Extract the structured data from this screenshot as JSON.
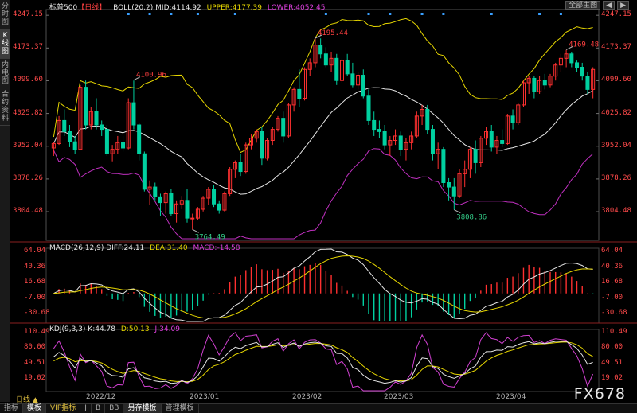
{
  "left_tabs": [
    "分时图",
    "K线图",
    "内电图",
    "合约资料"
  ],
  "main_header": {
    "symbol": "标普500",
    "period": "【日线】",
    "indicator": "BOLL(20,2)",
    "mid": "MID:4114.92",
    "upper": "UPPER:4177.39",
    "lower": "LOWER:4052.45"
  },
  "toolbar_right": {
    "btn1": "全部主图",
    "btn2": "◀",
    "btn3": "▶"
  },
  "price_axis": [
    "4247.15",
    "4173.37",
    "4099.60",
    "4025.82",
    "3952.04",
    "3878.26",
    "3804.48"
  ],
  "price_annotations": [
    {
      "text": "4100.96",
      "color": "#ff4040"
    },
    {
      "text": "4195.44",
      "color": "#ff4040"
    },
    {
      "text": "4169.48",
      "color": "#ff4040"
    },
    {
      "text": "3764.49",
      "color": "#33cc88"
    },
    {
      "text": "3808.86",
      "color": "#33cc88"
    }
  ],
  "macd_header": {
    "name": "MACD(26,12,9)",
    "diff": "DIFF:24.11",
    "dea": "DEA:31.40",
    "macd": "MACD:-14.58"
  },
  "macd_axis": [
    "64.04",
    "40.36",
    "16.68",
    "-7.00",
    "-30.68"
  ],
  "kdj_header": {
    "name": "KDJ(9,3,3)",
    "k": "K:44.78",
    "d": "D:50.13",
    "j": "J:34.09"
  },
  "kdj_axis": [
    "110.49",
    "80.00",
    "49.51",
    "19.02"
  ],
  "dates": [
    "2022/12",
    "2023/01",
    "2023/02",
    "2023/03",
    "2023/04"
  ],
  "period_bottom": "日线 ▲",
  "bottom_tabs": [
    "指标",
    "模板",
    "VIP指标",
    "J",
    "B",
    "BB",
    "另存模板",
    "管理模板"
  ],
  "watermark": "FX678",
  "colors": {
    "up": "#ff3030",
    "down": "#00d0a0",
    "upper_band": "#e6d600",
    "mid_band": "#e6e6e6",
    "lower_band": "#c030c0"
  },
  "chart_data": {
    "type": "candlestick",
    "title": "标普500 日线",
    "ylim": [
      3740,
      4260
    ],
    "candles": [
      [
        3948,
        3962,
        3930,
        3958
      ],
      [
        3958,
        4020,
        3955,
        4010
      ],
      [
        4010,
        4035,
        3975,
        3985
      ],
      [
        3985,
        4000,
        3950,
        3962
      ],
      [
        3962,
        3975,
        3935,
        3945
      ],
      [
        3945,
        4090,
        3945,
        4085
      ],
      [
        4085,
        4100,
        3990,
        4000
      ],
      [
        4000,
        4040,
        3990,
        4030
      ],
      [
        4030,
        4060,
        3990,
        4000
      ],
      [
        4000,
        4010,
        3975,
        3990
      ],
      [
        3990,
        4000,
        3930,
        3935
      ],
      [
        3935,
        3955,
        3918,
        3945
      ],
      [
        3945,
        3975,
        3935,
        3960
      ],
      [
        3960,
        3975,
        3940,
        3948
      ],
      [
        3948,
        4060,
        3945,
        4050
      ],
      [
        4050,
        4100,
        3990,
        4000
      ],
      [
        4000,
        4005,
        3920,
        3935
      ],
      [
        3935,
        3940,
        3850,
        3855
      ],
      [
        3855,
        3875,
        3820,
        3860
      ],
      [
        3860,
        3870,
        3830,
        3838
      ],
      [
        3838,
        3845,
        3795,
        3825
      ],
      [
        3825,
        3850,
        3800,
        3845
      ],
      [
        3845,
        3855,
        3795,
        3800
      ],
      [
        3800,
        3830,
        3780,
        3822
      ],
      [
        3822,
        3840,
        3810,
        3830
      ],
      [
        3830,
        3855,
        3780,
        3790
      ],
      [
        3790,
        3800,
        3764,
        3790
      ],
      [
        3790,
        3815,
        3785,
        3810
      ],
      [
        3810,
        3840,
        3805,
        3835
      ],
      [
        3835,
        3860,
        3820,
        3855
      ],
      [
        3855,
        3865,
        3815,
        3822
      ],
      [
        3822,
        3830,
        3800,
        3808
      ],
      [
        3808,
        3850,
        3805,
        3845
      ],
      [
        3845,
        3905,
        3840,
        3900
      ],
      [
        3900,
        3920,
        3880,
        3915
      ],
      [
        3915,
        3935,
        3885,
        3895
      ],
      [
        3895,
        3960,
        3890,
        3955
      ],
      [
        3955,
        3980,
        3945,
        3970
      ],
      [
        3970,
        3990,
        3960,
        3985
      ],
      [
        3985,
        3995,
        3910,
        3925
      ],
      [
        3925,
        3970,
        3920,
        3965
      ],
      [
        3965,
        3995,
        3955,
        3990
      ],
      [
        3990,
        4020,
        3985,
        4015
      ],
      [
        4015,
        4030,
        3960,
        3975
      ],
      [
        3975,
        4050,
        3970,
        4045
      ],
      [
        4045,
        4085,
        4030,
        4080
      ],
      [
        4080,
        4125,
        4040,
        4060
      ],
      [
        4060,
        4130,
        4055,
        4125
      ],
      [
        4125,
        4150,
        4110,
        4140
      ],
      [
        4140,
        4195,
        4130,
        4180
      ],
      [
        4180,
        4195,
        4150,
        4160
      ],
      [
        4160,
        4175,
        4130,
        4135
      ],
      [
        4135,
        4165,
        4120,
        4150
      ],
      [
        4150,
        4160,
        4090,
        4100
      ],
      [
        4100,
        4150,
        4095,
        4145
      ],
      [
        4145,
        4160,
        4110,
        4115
      ],
      [
        4115,
        4140,
        4085,
        4090
      ],
      [
        4090,
        4120,
        4080,
        4112
      ],
      [
        4112,
        4125,
        4060,
        4065
      ],
      [
        4065,
        4080,
        4000,
        4010
      ],
      [
        4010,
        4030,
        3975,
        3990
      ],
      [
        3990,
        4010,
        3970,
        3985
      ],
      [
        3985,
        4000,
        3945,
        3955
      ],
      [
        3955,
        3975,
        3930,
        3965
      ],
      [
        3965,
        3990,
        3955,
        3975
      ],
      [
        3975,
        3985,
        3930,
        3945
      ],
      [
        3945,
        3970,
        3920,
        3960
      ],
      [
        3960,
        3985,
        3945,
        3975
      ],
      [
        3975,
        4030,
        3970,
        4020
      ],
      [
        4020,
        4045,
        4000,
        4035
      ],
      [
        4035,
        4045,
        3980,
        3990
      ],
      [
        3990,
        4000,
        3920,
        3935
      ],
      [
        3935,
        3960,
        3900,
        3945
      ],
      [
        3945,
        3950,
        3860,
        3870
      ],
      [
        3870,
        3880,
        3830,
        3860
      ],
      [
        3860,
        3880,
        3809,
        3840
      ],
      [
        3840,
        3900,
        3835,
        3890
      ],
      [
        3890,
        3920,
        3860,
        3900
      ],
      [
        3900,
        3950,
        3880,
        3945
      ],
      [
        3945,
        3965,
        3890,
        3915
      ],
      [
        3915,
        3975,
        3905,
        3970
      ],
      [
        3970,
        3995,
        3955,
        3985
      ],
      [
        3985,
        4000,
        3940,
        3950
      ],
      [
        3950,
        3975,
        3935,
        3965
      ],
      [
        3965,
        3990,
        3950,
        3958
      ],
      [
        3958,
        4025,
        3955,
        4020
      ],
      [
        4020,
        4035,
        3990,
        4005
      ],
      [
        4005,
        4050,
        4000,
        4045
      ],
      [
        4045,
        4100,
        4040,
        4095
      ],
      [
        4095,
        4110,
        4070,
        4105
      ],
      [
        4105,
        4110,
        4060,
        4075
      ],
      [
        4075,
        4110,
        4070,
        4100
      ],
      [
        4100,
        4115,
        4080,
        4090
      ],
      [
        4090,
        4115,
        4085,
        4110
      ],
      [
        4110,
        4140,
        4100,
        4135
      ],
      [
        4135,
        4160,
        4120,
        4150
      ],
      [
        4150,
        4169,
        4130,
        4160
      ],
      [
        4160,
        4165,
        4130,
        4140
      ],
      [
        4140,
        4145,
        4120,
        4130
      ],
      [
        4130,
        4140,
        4100,
        4110
      ],
      [
        4110,
        4120,
        4070,
        4080
      ],
      [
        4080,
        4130,
        4060,
        4125
      ]
    ]
  }
}
